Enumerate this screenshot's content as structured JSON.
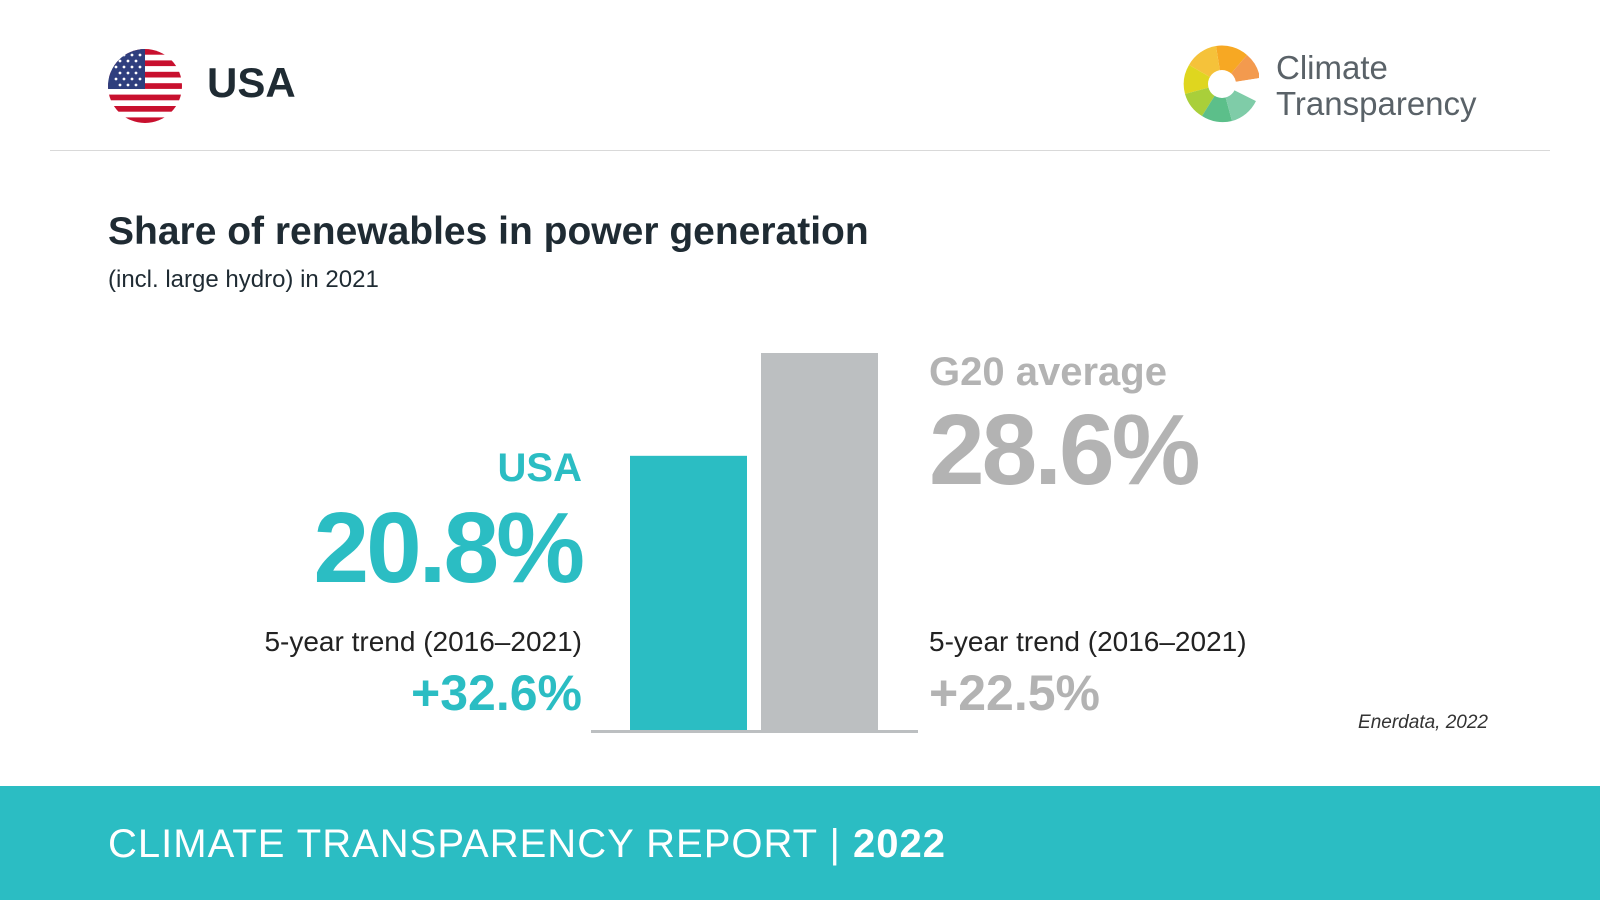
{
  "header": {
    "country": "USA",
    "logo_line1": "Climate",
    "logo_line2": "Transparency"
  },
  "chart_data": {
    "type": "bar",
    "title": "Share of renewables in power generation",
    "subtitle": "(incl. large hydro) in 2021",
    "categories": [
      "USA",
      "G20 average"
    ],
    "values": [
      20.8,
      28.6
    ],
    "value_labels": [
      "20.8%",
      "28.6%"
    ],
    "unit": "%",
    "trend_label": "5-year trend (2016–2021)",
    "trends": [
      "+32.6%",
      "+22.5%"
    ],
    "source": "Enerdata, 2022",
    "colors": [
      "#2bbdc3",
      "#bcbfc1"
    ],
    "label_colors": [
      "#2bbdc3",
      "#b3b3b3"
    ],
    "axis_color": "#bcbfc1",
    "grid": false
  },
  "footer": {
    "label": "CLIMATE TRANSPARENCY REPORT",
    "separator": "|",
    "year": "2022",
    "background": "#2bbdc3"
  }
}
